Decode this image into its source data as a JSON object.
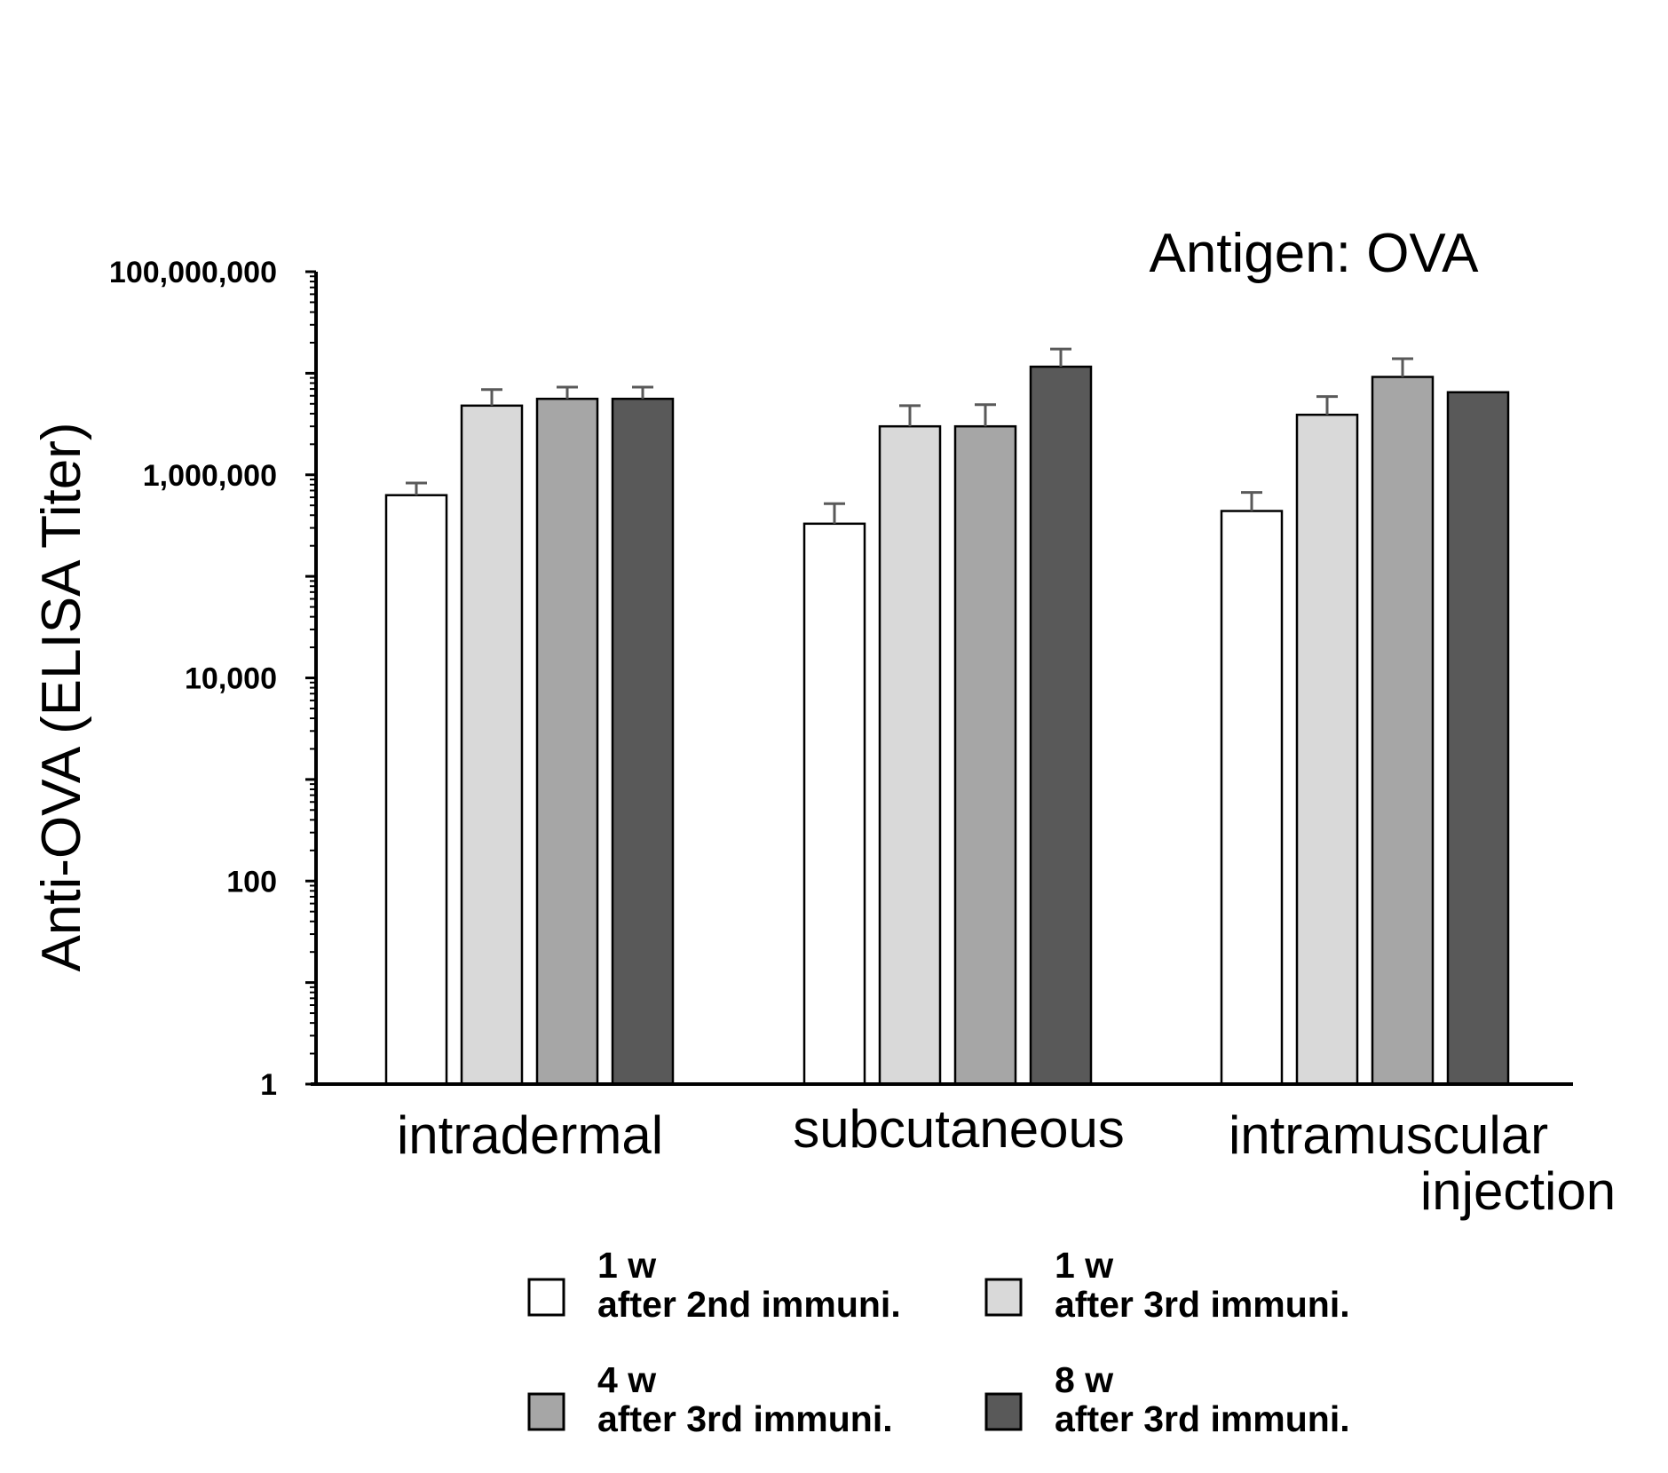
{
  "colors": {
    "s1": "#ffffff",
    "s2": "#d9d9d9",
    "s3": "#a6a6a6",
    "s4": "#595959",
    "axis": "#000000",
    "error": "#595959"
  },
  "chart_data": {
    "type": "bar",
    "title": "Antigen: OVA",
    "ylabel": "Anti-OVA (ELISA Titer)",
    "xlabel": "",
    "yscale": "log",
    "ylim": [
      1,
      100000000
    ],
    "yticks": [
      {
        "value": 100000000,
        "label": "100,000,000"
      },
      {
        "value": 1000000,
        "label": "1,000,000"
      },
      {
        "value": 10000,
        "label": "10,000"
      },
      {
        "value": 100,
        "label": "100"
      },
      {
        "value": 1,
        "label": "1"
      }
    ],
    "categories": [
      "intradermal",
      "subcutaneous",
      "intramuscular"
    ],
    "category_extra_label": "injection",
    "legend_position": "bottom",
    "series": [
      {
        "name_line1": "1 w",
        "name_line2": "after 2nd immuni.",
        "values": [
          630000,
          330000,
          440000
        ],
        "errors": [
          200000,
          190000,
          230000
        ]
      },
      {
        "name_line1": "1 w",
        "name_line2": "after 3rd immuni.",
        "values": [
          4800000,
          3000000,
          3900000
        ],
        "errors": [
          2100000,
          1800000,
          2000000
        ]
      },
      {
        "name_line1": "4 w",
        "name_line2": "after 3rd immuni.",
        "values": [
          5600000,
          3000000,
          9200000
        ],
        "errors": [
          1700000,
          1900000,
          4700000
        ]
      },
      {
        "name_line1": "8 w",
        "name_line2": "after 3rd immuni.",
        "values": [
          5600000,
          11600000,
          6500000
        ],
        "errors": [
          1700000,
          5700000,
          0
        ]
      }
    ]
  }
}
